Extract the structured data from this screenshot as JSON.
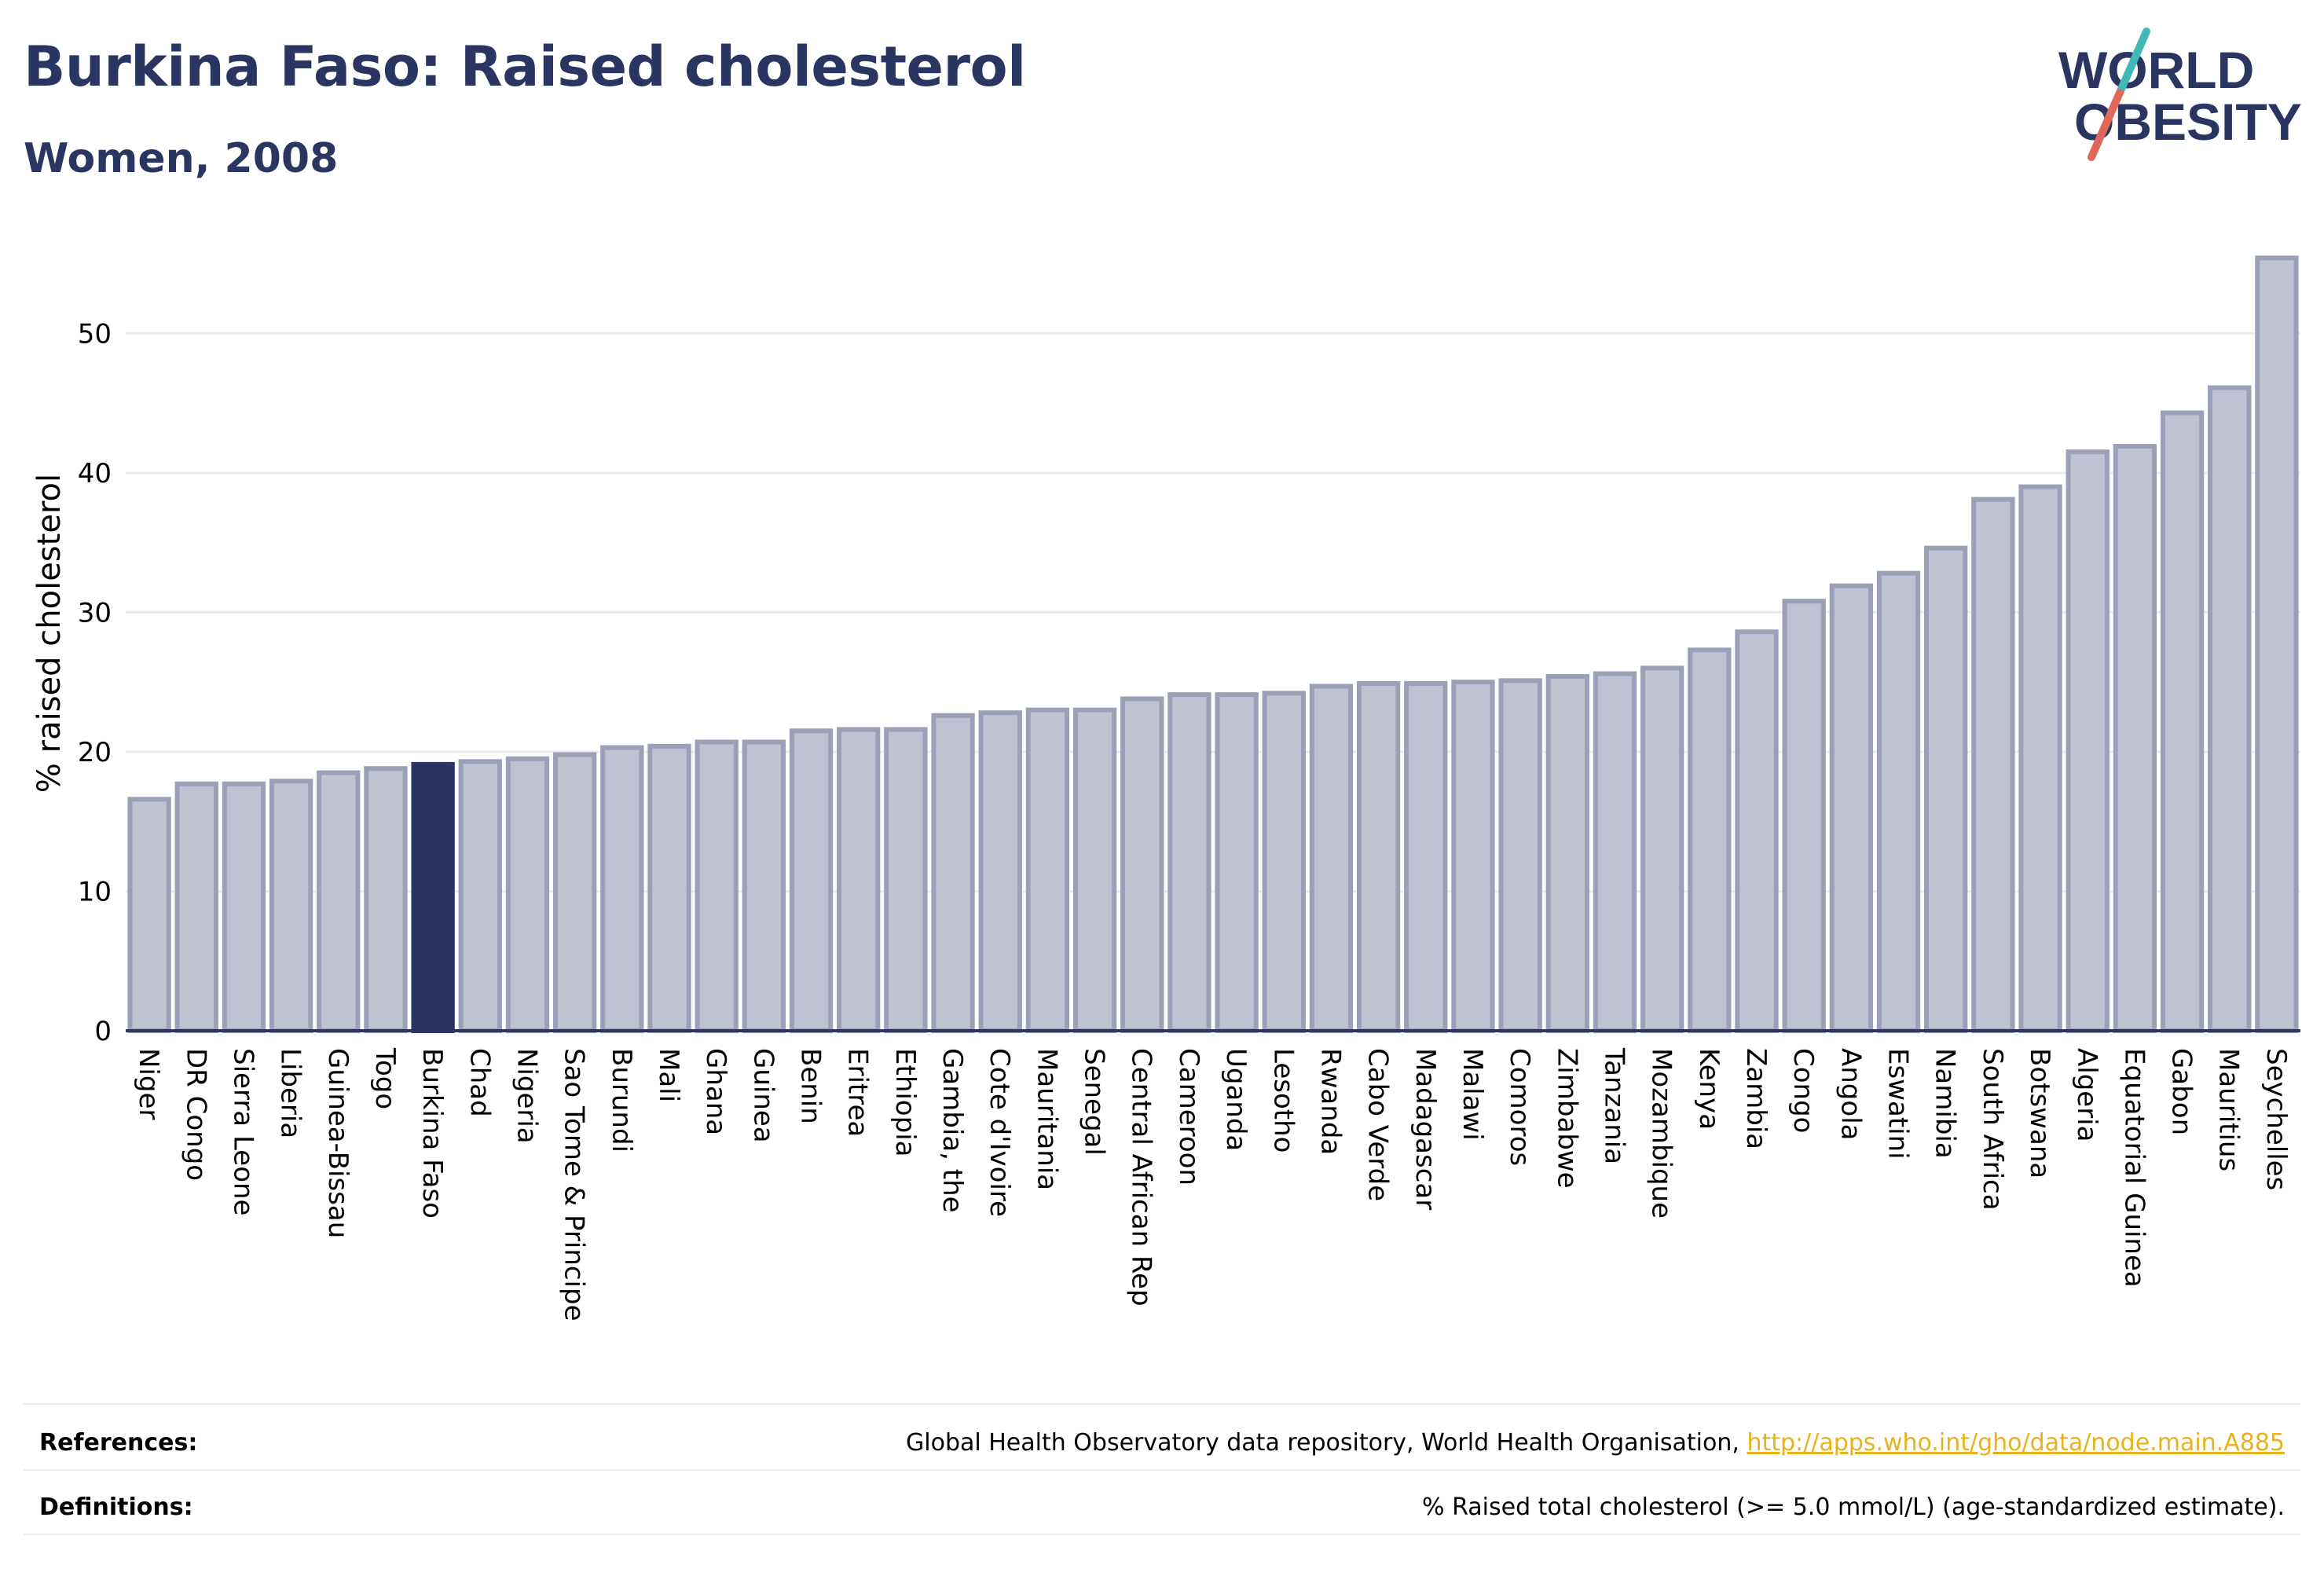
{
  "title": "Burkina Faso: Raised cholesterol",
  "subtitle": "Women, 2008",
  "logo": {
    "line1": "WORLD",
    "line2": "OBESITY",
    "text_color": "#2b3561",
    "slash_colors": [
      "#41b8b8",
      "#e0675a"
    ]
  },
  "colors": {
    "bar_fill": "#bfc2d1",
    "bar_stroke": "#9ba0b7",
    "highlight": "#2b3561",
    "grid": "#e9ecef",
    "axis": "#2b3561"
  },
  "chart_data": {
    "type": "bar",
    "ylabel": "% raised cholesterol",
    "ylim": [
      0,
      57
    ],
    "yticks": [
      0,
      10,
      20,
      30,
      40,
      50
    ],
    "highlight": "Burkina Faso",
    "categories": [
      "Niger",
      "DR Congo",
      "Sierra Leone",
      "Liberia",
      "Guinea-Bissau",
      "Togo",
      "Burkina Faso",
      "Chad",
      "Nigeria",
      "Sao Tome & Principe",
      "Burundi",
      "Mali",
      "Ghana",
      "Guinea",
      "Benin",
      "Eritrea",
      "Ethiopia",
      "Gambia, the",
      "Cote d'Ivoire",
      "Mauritania",
      "Senegal",
      "Central African Rep",
      "Cameroon",
      "Uganda",
      "Lesotho",
      "Rwanda",
      "Cabo Verde",
      "Madagascar",
      "Malawi",
      "Comoros",
      "Zimbabwe",
      "Tanzania",
      "Mozambique",
      "Kenya",
      "Zambia",
      "Congo",
      "Angola",
      "Eswatini",
      "Namibia",
      "South Africa",
      "Botswana",
      "Algeria",
      "Equatorial Guinea",
      "Gabon",
      "Mauritius",
      "Seychelles"
    ],
    "values": [
      16.6,
      17.7,
      17.7,
      17.9,
      18.5,
      18.8,
      19.1,
      19.3,
      19.5,
      19.8,
      20.3,
      20.4,
      20.7,
      20.7,
      21.5,
      21.6,
      21.6,
      22.6,
      22.8,
      23.0,
      23.0,
      23.8,
      24.1,
      24.1,
      24.2,
      24.7,
      24.9,
      24.9,
      25.0,
      25.1,
      25.4,
      25.6,
      26.0,
      27.3,
      28.6,
      30.8,
      31.9,
      32.8,
      34.6,
      38.1,
      39.0,
      41.5,
      41.9,
      44.3,
      46.1,
      55.4
    ]
  },
  "references": {
    "label": "References:",
    "text": "Global Health Observatory data repository, World Health Organisation, ",
    "link": "http://apps.who.int/gho/data/node.main.A885"
  },
  "definitions": {
    "label": "Definitions:",
    "text": "% Raised total cholesterol (>= 5.0 mmol/L) (age-standardized estimate)."
  }
}
